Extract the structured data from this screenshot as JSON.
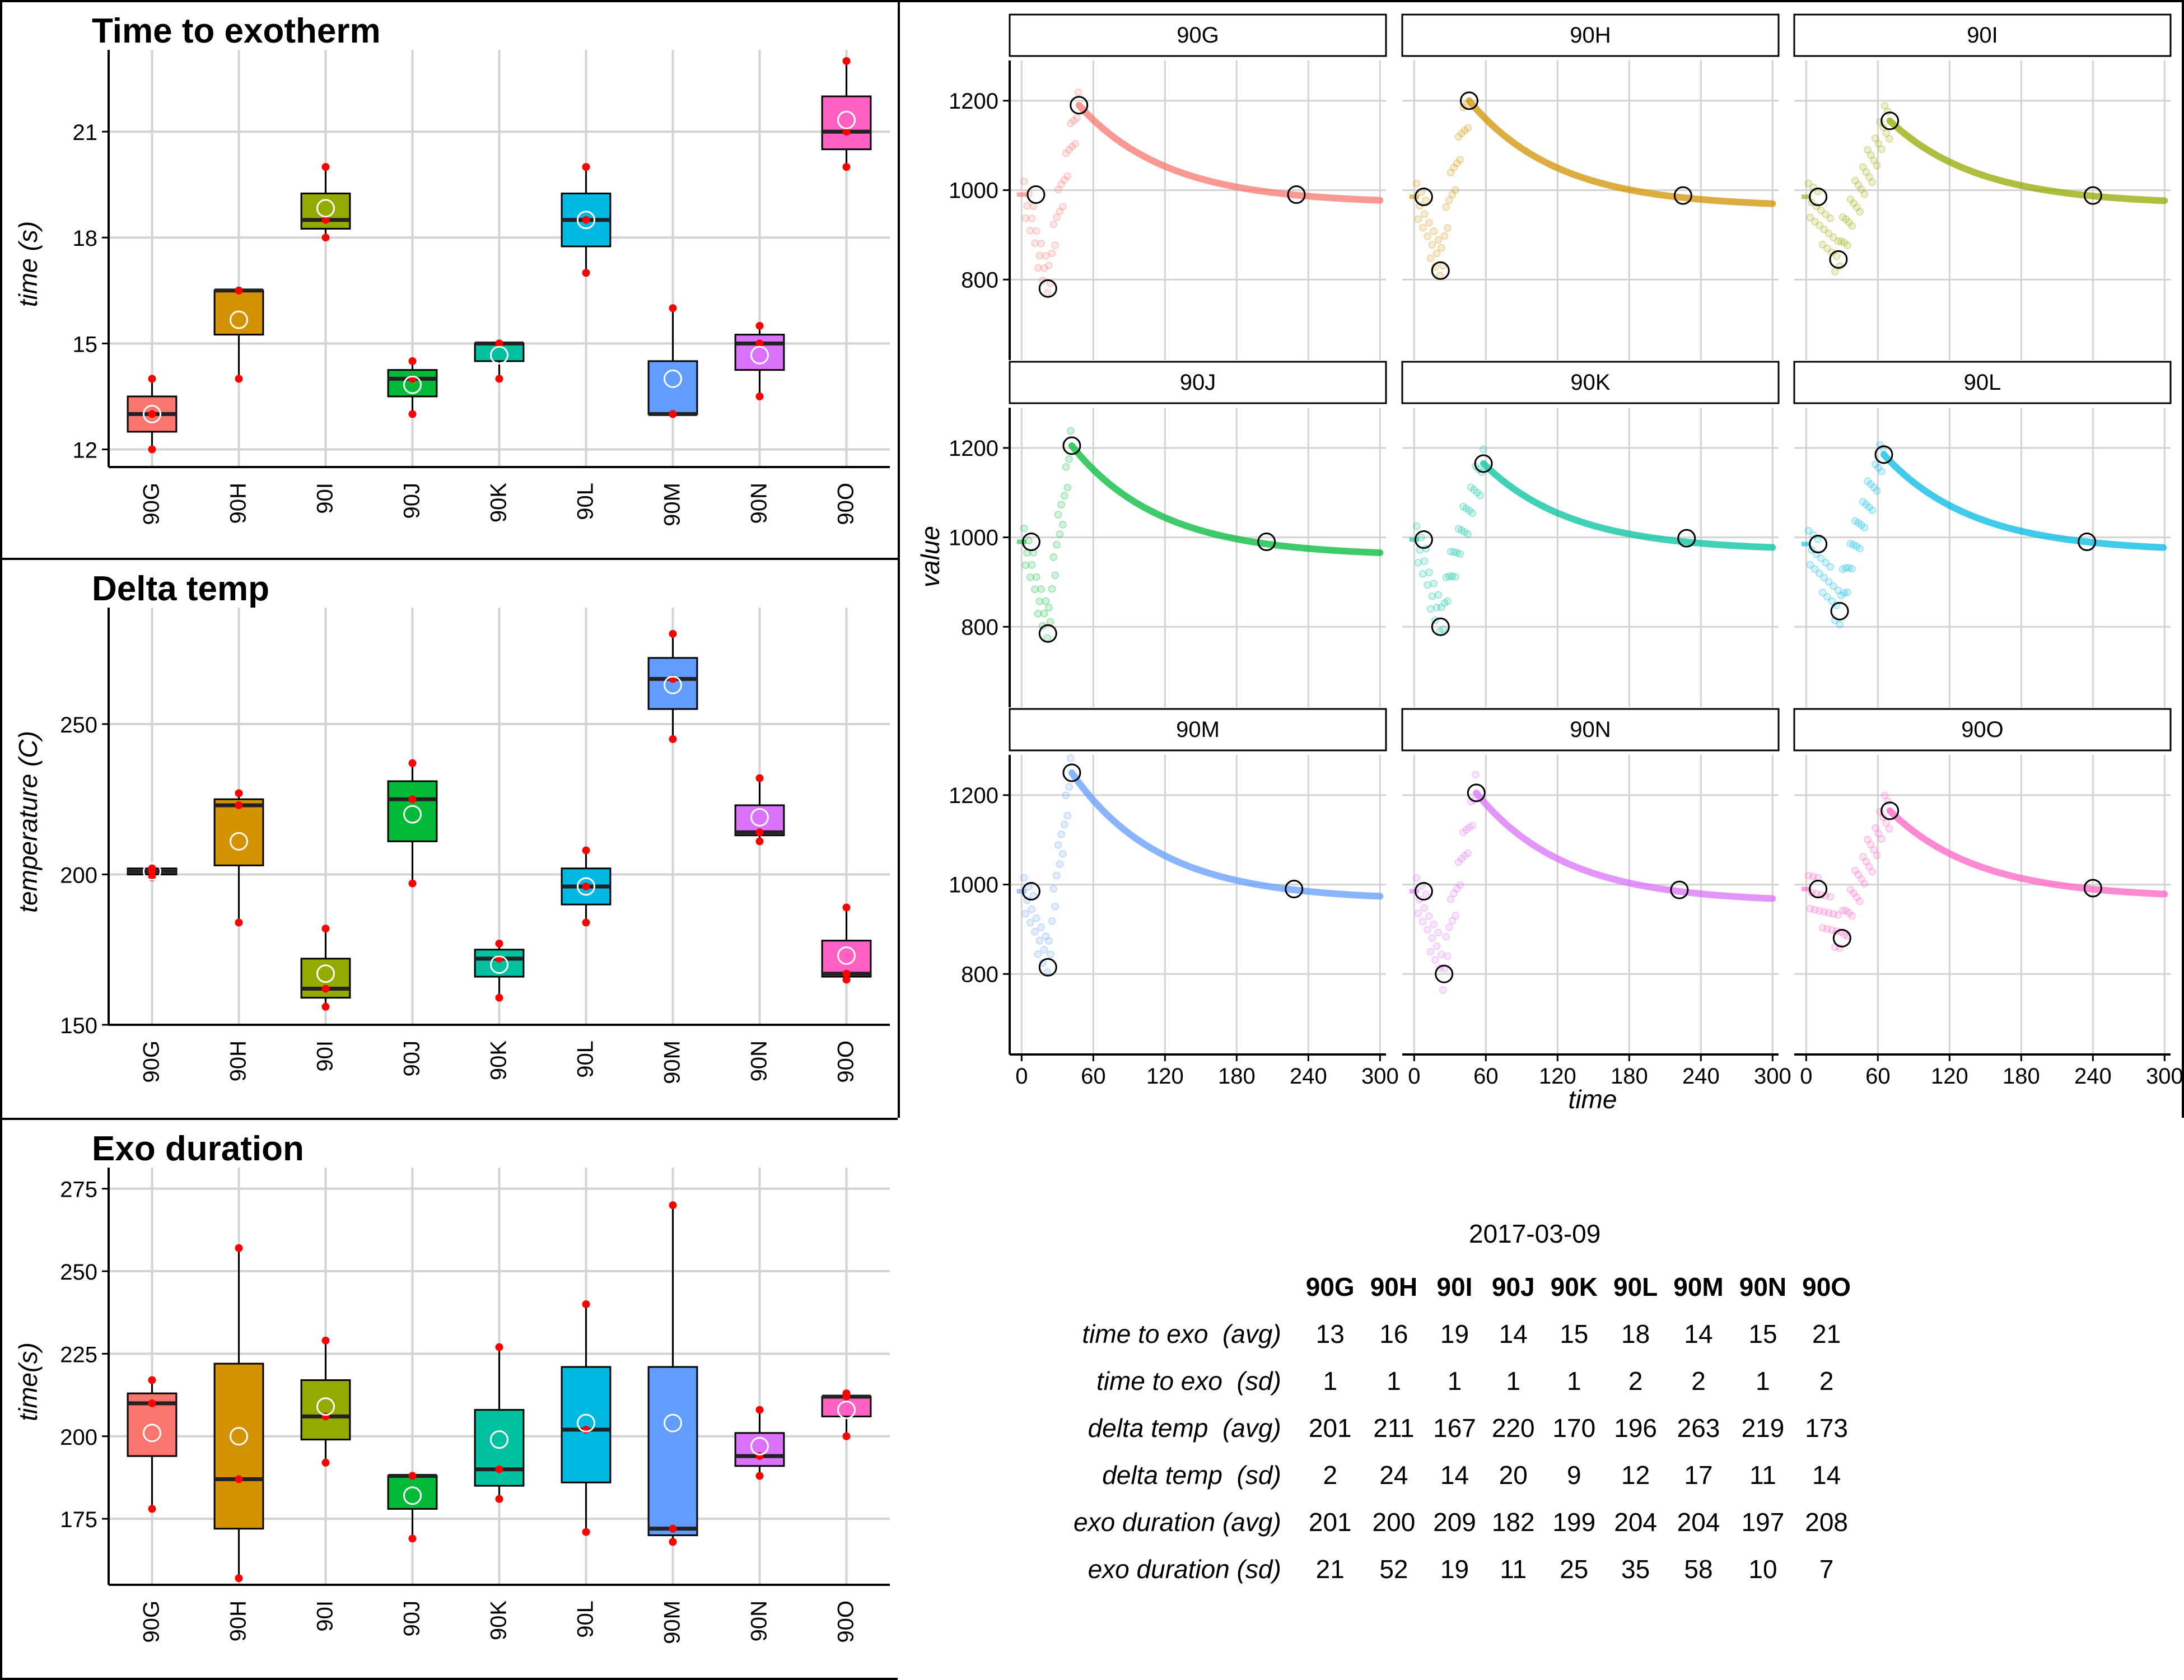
{
  "colors": {
    "groups": [
      "#F8766D",
      "#D39200",
      "#93AA00",
      "#00BA38",
      "#00C19F",
      "#00B9E3",
      "#619CFF",
      "#DB72FB",
      "#FF61C3"
    ],
    "points": "#FF0000",
    "grid": "#D3D3D3"
  },
  "box_charts": [
    {
      "type": "box",
      "title": "Time to exotherm",
      "ylabel": "time (s)",
      "categories": [
        "90G",
        "90H",
        "90I",
        "90J",
        "90K",
        "90L",
        "90M",
        "90N",
        "90O"
      ],
      "ylim": [
        11.5,
        23
      ],
      "yticks": [
        12,
        15,
        18,
        21
      ],
      "boxes": [
        {
          "q1": 12.5,
          "median": 13.0,
          "q3": 13.5,
          "lo": 12.0,
          "hi": 14.0,
          "mean": 13.0,
          "points": [
            12.0,
            13.0,
            14.0
          ]
        },
        {
          "q1": 15.25,
          "median": 16.5,
          "q3": 16.5,
          "lo": 14.0,
          "hi": 16.5,
          "mean": 15.67,
          "points": [
            14.0,
            16.5,
            16.5
          ]
        },
        {
          "q1": 18.25,
          "median": 18.5,
          "q3": 19.25,
          "lo": 18.0,
          "hi": 20.0,
          "mean": 18.83,
          "points": [
            18.0,
            18.5,
            20.0
          ]
        },
        {
          "q1": 13.5,
          "median": 14.0,
          "q3": 14.25,
          "lo": 13.0,
          "hi": 14.5,
          "mean": 13.83,
          "points": [
            13.0,
            14.0,
            14.5
          ]
        },
        {
          "q1": 14.5,
          "median": 15.0,
          "q3": 15.0,
          "lo": 14.0,
          "hi": 15.0,
          "mean": 14.67,
          "points": [
            14.0,
            15.0,
            15.0
          ]
        },
        {
          "q1": 17.75,
          "median": 18.5,
          "q3": 19.25,
          "lo": 17.0,
          "hi": 20.0,
          "mean": 18.5,
          "points": [
            17.0,
            18.5,
            20.0
          ]
        },
        {
          "q1": 13.0,
          "median": 13.0,
          "q3": 14.5,
          "lo": 13.0,
          "hi": 16.0,
          "mean": 14.0,
          "points": [
            13.0,
            13.0,
            16.0
          ]
        },
        {
          "q1": 14.25,
          "median": 15.0,
          "q3": 15.25,
          "lo": 13.5,
          "hi": 15.5,
          "mean": 14.67,
          "points": [
            13.5,
            15.0,
            15.5
          ]
        },
        {
          "q1": 20.5,
          "median": 21.0,
          "q3": 22.0,
          "lo": 20.0,
          "hi": 23.0,
          "mean": 21.33,
          "points": [
            20.0,
            21.0,
            23.0
          ]
        }
      ]
    },
    {
      "type": "box",
      "title": "Delta temp",
      "ylabel": "temperature (C)",
      "categories": [
        "90G",
        "90H",
        "90I",
        "90J",
        "90K",
        "90L",
        "90M",
        "90N",
        "90O"
      ],
      "ylim": [
        150,
        285
      ],
      "yticks": [
        150,
        200,
        250
      ],
      "boxes": [
        {
          "q1": 200,
          "median": 201,
          "q3": 202,
          "lo": 199,
          "hi": 202,
          "mean": 201,
          "points": [
            199,
            201,
            202
          ]
        },
        {
          "q1": 203,
          "median": 223,
          "q3": 225,
          "lo": 184,
          "hi": 227,
          "mean": 211,
          "points": [
            184,
            223,
            227
          ]
        },
        {
          "q1": 159,
          "median": 162,
          "q3": 172,
          "lo": 156,
          "hi": 182,
          "mean": 167,
          "points": [
            156,
            162,
            182
          ]
        },
        {
          "q1": 211,
          "median": 225,
          "q3": 231,
          "lo": 197,
          "hi": 237,
          "mean": 220,
          "points": [
            197,
            225,
            237
          ]
        },
        {
          "q1": 166,
          "median": 172,
          "q3": 175,
          "lo": 159,
          "hi": 177,
          "mean": 170,
          "points": [
            159,
            172,
            177
          ]
        },
        {
          "q1": 190,
          "median": 196,
          "q3": 202,
          "lo": 184,
          "hi": 208,
          "mean": 196,
          "points": [
            184,
            196,
            208
          ]
        },
        {
          "q1": 255,
          "median": 265,
          "q3": 272,
          "lo": 245,
          "hi": 280,
          "mean": 263,
          "points": [
            245,
            265,
            280
          ]
        },
        {
          "q1": 213,
          "median": 214,
          "q3": 223,
          "lo": 211,
          "hi": 232,
          "mean": 219,
          "points": [
            211,
            214,
            232
          ]
        },
        {
          "q1": 166,
          "median": 167,
          "q3": 178,
          "lo": 165,
          "hi": 189,
          "mean": 173,
          "points": [
            165,
            167,
            189
          ]
        }
      ]
    },
    {
      "type": "box",
      "title": "Exo duration",
      "ylabel": "time(s)",
      "categories": [
        "90G",
        "90H",
        "90I",
        "90J",
        "90K",
        "90L",
        "90M",
        "90N",
        "90O"
      ],
      "ylim": [
        155,
        278
      ],
      "yticks": [
        175,
        200,
        225,
        250,
        275
      ],
      "boxes": [
        {
          "q1": 194,
          "median": 210,
          "q3": 213,
          "lo": 178,
          "hi": 217,
          "mean": 201,
          "points": [
            178,
            210,
            217
          ]
        },
        {
          "q1": 172,
          "median": 187,
          "q3": 222,
          "lo": 157,
          "hi": 257,
          "mean": 200,
          "points": [
            157,
            187,
            257
          ]
        },
        {
          "q1": 199,
          "median": 206,
          "q3": 217,
          "lo": 192,
          "hi": 229,
          "mean": 209,
          "points": [
            192,
            206,
            229
          ]
        },
        {
          "q1": 178,
          "median": 188,
          "q3": 188,
          "lo": 169,
          "hi": 188,
          "mean": 182,
          "points": [
            169,
            188,
            188
          ]
        },
        {
          "q1": 185,
          "median": 190,
          "q3": 208,
          "lo": 181,
          "hi": 227,
          "mean": 199,
          "points": [
            181,
            190,
            227
          ]
        },
        {
          "q1": 186,
          "median": 202,
          "q3": 221,
          "lo": 171,
          "hi": 240,
          "mean": 204,
          "points": [
            171,
            202,
            240
          ]
        },
        {
          "q1": 170,
          "median": 172,
          "q3": 221,
          "lo": 168,
          "hi": 270,
          "mean": 204,
          "points": [
            168,
            172,
            270
          ]
        },
        {
          "q1": 191,
          "median": 194,
          "q3": 201,
          "lo": 188,
          "hi": 208,
          "mean": 197,
          "points": [
            188,
            194,
            208
          ]
        },
        {
          "q1": 206,
          "median": 212,
          "q3": 212,
          "lo": 200,
          "hi": 213,
          "mean": 208,
          "points": [
            200,
            212,
            213
          ]
        }
      ]
    }
  ],
  "facet_chart": {
    "type": "line",
    "xlabel": "time",
    "ylabel": "value",
    "xlim": [
      -10,
      305
    ],
    "ylim": [
      620,
      1290
    ],
    "xticks": [
      0,
      60,
      120,
      180,
      240,
      300
    ],
    "yticks": [
      800,
      1000,
      1200
    ],
    "panels": [
      {
        "label": "90G",
        "start": 990,
        "dip_t": 22,
        "dip_v": 780,
        "peak_t": 48,
        "peak_v": 1190,
        "end_v": 970,
        "markers": [
          [
            12,
            990
          ],
          [
            22,
            780
          ],
          [
            48,
            1190
          ],
          [
            230,
            990
          ]
        ]
      },
      {
        "label": "90H",
        "start": 985,
        "dip_t": 22,
        "dip_v": 820,
        "peak_t": 46,
        "peak_v": 1200,
        "end_v": 962,
        "markers": [
          [
            8,
            985
          ],
          [
            22,
            820
          ],
          [
            46,
            1200
          ],
          [
            225,
            988
          ]
        ]
      },
      {
        "label": "90I",
        "start": 985,
        "dip_t": 27,
        "dip_v": 845,
        "peak_t": 70,
        "peak_v": 1155,
        "end_v": 968,
        "markers": [
          [
            10,
            985
          ],
          [
            27,
            845
          ],
          [
            70,
            1155
          ],
          [
            240,
            988
          ]
        ]
      },
      {
        "label": "90J",
        "start": 990,
        "dip_t": 22,
        "dip_v": 785,
        "peak_t": 42,
        "peak_v": 1205,
        "end_v": 958,
        "markers": [
          [
            8,
            990
          ],
          [
            22,
            785
          ],
          [
            42,
            1205
          ],
          [
            205,
            990
          ]
        ]
      },
      {
        "label": "90K",
        "start": 995,
        "dip_t": 22,
        "dip_v": 800,
        "peak_t": 58,
        "peak_v": 1165,
        "end_v": 970,
        "markers": [
          [
            8,
            995
          ],
          [
            22,
            800
          ],
          [
            58,
            1165
          ],
          [
            228,
            998
          ]
        ]
      },
      {
        "label": "90L",
        "start": 985,
        "dip_t": 28,
        "dip_v": 835,
        "peak_t": 65,
        "peak_v": 1185,
        "end_v": 968,
        "markers": [
          [
            10,
            985
          ],
          [
            28,
            835
          ],
          [
            65,
            1185
          ],
          [
            235,
            990
          ]
        ]
      },
      {
        "label": "90M",
        "start": 985,
        "dip_t": 22,
        "dip_v": 815,
        "peak_t": 42,
        "peak_v": 1250,
        "end_v": 965,
        "markers": [
          [
            8,
            985
          ],
          [
            22,
            815
          ],
          [
            42,
            1250
          ],
          [
            228,
            990
          ]
        ]
      },
      {
        "label": "90N",
        "start": 985,
        "dip_t": 25,
        "dip_v": 800,
        "peak_t": 52,
        "peak_v": 1205,
        "end_v": 960,
        "markers": [
          [
            8,
            985
          ],
          [
            25,
            800
          ],
          [
            52,
            1205
          ],
          [
            222,
            988
          ]
        ]
      },
      {
        "label": "90O",
        "start": 990,
        "dip_t": 30,
        "dip_v": 880,
        "peak_t": 70,
        "peak_v": 1165,
        "end_v": 970,
        "markers": [
          [
            10,
            990
          ],
          [
            30,
            880
          ],
          [
            70,
            1165
          ],
          [
            240,
            992
          ]
        ]
      }
    ]
  },
  "summary": {
    "date": "2017-03-09",
    "columns": [
      "90G",
      "90H",
      "90I",
      "90J",
      "90K",
      "90L",
      "90M",
      "90N",
      "90O"
    ],
    "rows": [
      {
        "label": "time to exo  (avg)",
        "values": [
          "13",
          "16",
          "19",
          "14",
          "15",
          "18",
          "14",
          "15",
          "21"
        ]
      },
      {
        "label": "time to exo  (sd)",
        "values": [
          "1",
          "1",
          "1",
          "1",
          "1",
          "2",
          "2",
          "1",
          "2"
        ]
      },
      {
        "label": "delta temp  (avg)",
        "values": [
          "201",
          "211",
          "167",
          "220",
          "170",
          "196",
          "263",
          "219",
          "173"
        ]
      },
      {
        "label": "delta temp  (sd)",
        "values": [
          "2",
          "24",
          "14",
          "20",
          "9",
          "12",
          "17",
          "11",
          "14"
        ]
      },
      {
        "label": "exo duration (avg)",
        "values": [
          "201",
          "200",
          "209",
          "182",
          "199",
          "204",
          "204",
          "197",
          "208"
        ]
      },
      {
        "label": "exo duration (sd)",
        "values": [
          "21",
          "52",
          "19",
          "11",
          "25",
          "35",
          "58",
          "10",
          "7"
        ]
      }
    ]
  }
}
